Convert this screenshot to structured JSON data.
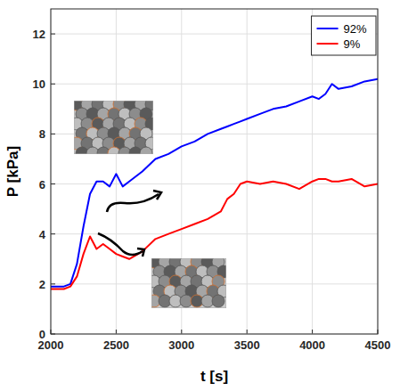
{
  "chart_data": {
    "type": "line",
    "x_label": "t [s]",
    "y_label": "P [kPa]",
    "x": [
      2000,
      2100,
      2150,
      2200,
      2250,
      2300,
      2350,
      2400,
      2450,
      2500,
      2550,
      2600,
      2700,
      2800,
      2900,
      3000,
      3100,
      3200,
      3300,
      3350,
      3400,
      3450,
      3500,
      3600,
      3700,
      3800,
      3900,
      4000,
      4050,
      4100,
      4150,
      4200,
      4300,
      4400,
      4500
    ],
    "series": [
      {
        "name": "92%",
        "color": "#0000ff",
        "values": [
          1.9,
          1.9,
          2.0,
          2.8,
          4.3,
          5.6,
          6.1,
          6.1,
          5.9,
          6.4,
          5.9,
          6.1,
          6.5,
          7.0,
          7.2,
          7.5,
          7.7,
          8.0,
          8.2,
          8.3,
          8.4,
          8.5,
          8.6,
          8.8,
          9.0,
          9.1,
          9.3,
          9.5,
          9.4,
          9.6,
          10.0,
          9.8,
          9.9,
          10.1,
          10.2
        ]
      },
      {
        "name": "9%",
        "color": "#ff0000",
        "values": [
          1.8,
          1.8,
          1.9,
          2.3,
          3.2,
          3.9,
          3.4,
          3.6,
          3.4,
          3.2,
          3.1,
          3.0,
          3.3,
          3.8,
          4.0,
          4.2,
          4.4,
          4.6,
          4.9,
          5.4,
          5.6,
          6.0,
          6.1,
          6.0,
          6.1,
          6.0,
          5.8,
          6.1,
          6.2,
          6.2,
          6.1,
          6.1,
          6.2,
          5.9,
          6.0
        ]
      }
    ],
    "xlim": [
      2000,
      4500
    ],
    "xticks": [
      2000,
      2500,
      3000,
      3500,
      4000,
      4500
    ],
    "ylim": [
      0,
      13
    ],
    "yticks": [
      0,
      2,
      4,
      6,
      8,
      10,
      12
    ],
    "grid": true,
    "legend": "top-right"
  }
}
